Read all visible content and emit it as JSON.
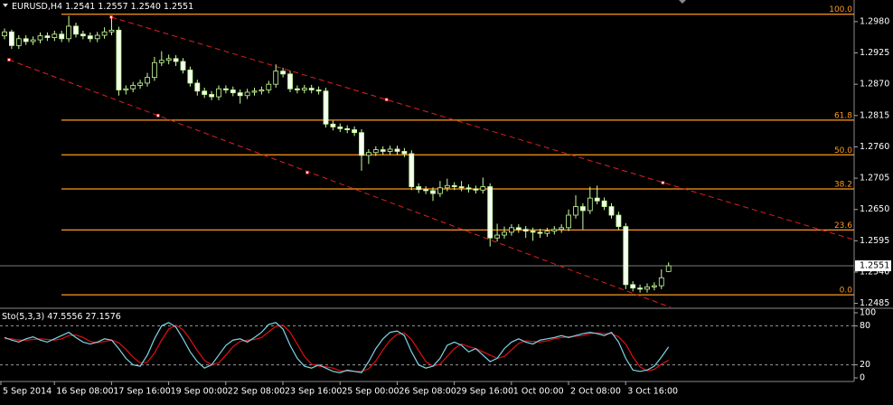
{
  "chart_data": {
    "type": "candlestick",
    "title": "EURUSD,H4",
    "ohlc_header": "1.2541 1.2557 1.2540 1.2551",
    "categories": [
      "5 Sep 2014",
      null,
      null,
      null,
      null,
      null,
      null,
      null,
      "16 Sep 08:00",
      null,
      null,
      null,
      null,
      null,
      null,
      null,
      "17 Sep 16:00",
      null,
      null,
      null,
      null,
      null,
      null,
      null,
      "19 Sep 00:00",
      null,
      null,
      null,
      null,
      null,
      null,
      null,
      "22 Sep 08:00",
      null,
      null,
      null,
      null,
      null,
      null,
      null,
      "23 Sep 16:00",
      null,
      null,
      null,
      null,
      null,
      null,
      null,
      "25 Sep 00:00",
      null,
      null,
      null,
      null,
      null,
      null,
      null,
      "26 Sep 08:00",
      null,
      null,
      null,
      null,
      null,
      null,
      null,
      "29 Sep 16:00",
      null,
      null,
      null,
      null,
      null,
      null,
      null,
      "1 Oct 00:00",
      null,
      null,
      null,
      null,
      null,
      null,
      null,
      "2 Oct 08:00",
      null,
      null,
      null,
      null,
      null,
      null,
      null,
      "3 Oct 16:00",
      null,
      null,
      null,
      null,
      null
    ],
    "ohlc": [
      [
        1.2955,
        1.2968,
        1.2949,
        1.2962
      ],
      [
        1.2962,
        1.2966,
        1.2932,
        1.2938
      ],
      [
        1.2938,
        1.2956,
        1.2932,
        1.295
      ],
      [
        1.295,
        1.2956,
        1.2939,
        1.2945
      ],
      [
        1.2945,
        1.2954,
        1.2939,
        1.2948
      ],
      [
        1.2948,
        1.2961,
        1.2942,
        1.2955
      ],
      [
        1.2955,
        1.2961,
        1.2946,
        1.2952
      ],
      [
        1.2952,
        1.2964,
        1.2946,
        1.2958
      ],
      [
        1.2958,
        1.2964,
        1.2944,
        1.295
      ],
      [
        1.295,
        1.299,
        1.2944,
        1.2972
      ],
      [
        1.2972,
        1.2978,
        1.2952,
        1.2958
      ],
      [
        1.2958,
        1.2964,
        1.2949,
        1.2955
      ],
      [
        1.2955,
        1.2961,
        1.2944,
        1.295
      ],
      [
        1.295,
        1.2962,
        1.2944,
        1.2956
      ],
      [
        1.2956,
        1.297,
        1.295,
        1.2962
      ],
      [
        1.2962,
        1.2988,
        1.2956,
        1.2965
      ],
      [
        1.2965,
        1.2971,
        1.285,
        1.286
      ],
      [
        1.286,
        1.2868,
        1.2852,
        1.2862
      ],
      [
        1.2862,
        1.2874,
        1.2856,
        1.2868
      ],
      [
        1.2868,
        1.2878,
        1.2862,
        1.2872
      ],
      [
        1.2872,
        1.289,
        1.2866,
        1.2882
      ],
      [
        1.2882,
        1.2918,
        1.2876,
        1.2908
      ],
      [
        1.2908,
        1.2928,
        1.2902,
        1.2912
      ],
      [
        1.2912,
        1.2922,
        1.2905,
        1.2915
      ],
      [
        1.2915,
        1.2921,
        1.2902,
        1.291
      ],
      [
        1.291,
        1.2916,
        1.2889,
        1.2895
      ],
      [
        1.2895,
        1.2901,
        1.2866,
        1.2872
      ],
      [
        1.2872,
        1.2878,
        1.285,
        1.2858
      ],
      [
        1.2858,
        1.2864,
        1.2846,
        1.2852
      ],
      [
        1.2852,
        1.2858,
        1.2842,
        1.2848
      ],
      [
        1.2848,
        1.2868,
        1.2842,
        1.2862
      ],
      [
        1.2862,
        1.2868,
        1.2854,
        1.286
      ],
      [
        1.286,
        1.2866,
        1.2849,
        1.2855
      ],
      [
        1.2855,
        1.2861,
        1.2836,
        1.285
      ],
      [
        1.285,
        1.2862,
        1.2844,
        1.2856
      ],
      [
        1.2856,
        1.2864,
        1.285,
        1.2858
      ],
      [
        1.2858,
        1.2866,
        1.2852,
        1.286
      ],
      [
        1.286,
        1.2876,
        1.2854,
        1.287
      ],
      [
        1.287,
        1.2905,
        1.2864,
        1.2893
      ],
      [
        1.2893,
        1.2899,
        1.2882,
        1.2888
      ],
      [
        1.2888,
        1.2894,
        1.2856,
        1.2862
      ],
      [
        1.2862,
        1.2868,
        1.2854,
        1.286
      ],
      [
        1.286,
        1.2869,
        1.2854,
        1.2863
      ],
      [
        1.2863,
        1.2869,
        1.2854,
        1.286
      ],
      [
        1.286,
        1.2866,
        1.2852,
        1.2858
      ],
      [
        1.2858,
        1.2864,
        1.2794,
        1.28
      ],
      [
        1.28,
        1.2806,
        1.2789,
        1.2795
      ],
      [
        1.2795,
        1.2801,
        1.2786,
        1.2792
      ],
      [
        1.2792,
        1.2798,
        1.2784,
        1.279
      ],
      [
        1.279,
        1.2796,
        1.2779,
        1.2785
      ],
      [
        1.2785,
        1.2791,
        1.2718,
        1.2745
      ],
      [
        1.2745,
        1.2756,
        1.273,
        1.275
      ],
      [
        1.275,
        1.2761,
        1.2744,
        1.2755
      ],
      [
        1.2755,
        1.2761,
        1.2746,
        1.2752
      ],
      [
        1.2752,
        1.2762,
        1.2746,
        1.2756
      ],
      [
        1.2756,
        1.2762,
        1.2746,
        1.2752
      ],
      [
        1.2752,
        1.2758,
        1.2742,
        1.2748
      ],
      [
        1.2748,
        1.2754,
        1.2684,
        1.269
      ],
      [
        1.269,
        1.2696,
        1.2679,
        1.2685
      ],
      [
        1.2685,
        1.2691,
        1.2677,
        1.2683
      ],
      [
        1.2683,
        1.2689,
        1.2665,
        1.2678
      ],
      [
        1.2678,
        1.27,
        1.2672,
        1.2688
      ],
      [
        1.2688,
        1.2704,
        1.2682,
        1.2692
      ],
      [
        1.2692,
        1.2698,
        1.2684,
        1.269
      ],
      [
        1.269,
        1.27,
        1.2682,
        1.2688
      ],
      [
        1.2688,
        1.2694,
        1.268,
        1.2686
      ],
      [
        1.2686,
        1.2692,
        1.2678,
        1.2684
      ],
      [
        1.2684,
        1.2706,
        1.2678,
        1.269
      ],
      [
        1.269,
        1.2696,
        1.2585,
        1.26
      ],
      [
        1.26,
        1.2625,
        1.2594,
        1.2605
      ],
      [
        1.2605,
        1.262,
        1.2599,
        1.261
      ],
      [
        1.261,
        1.2624,
        1.2604,
        1.2618
      ],
      [
        1.2618,
        1.2624,
        1.2609,
        1.2615
      ],
      [
        1.2615,
        1.2621,
        1.26,
        1.2612
      ],
      [
        1.2612,
        1.2618,
        1.2595,
        1.261
      ],
      [
        1.261,
        1.2616,
        1.26,
        1.2608
      ],
      [
        1.2608,
        1.2618,
        1.2602,
        1.2612
      ],
      [
        1.2612,
        1.2621,
        1.2606,
        1.2615
      ],
      [
        1.2615,
        1.2624,
        1.2609,
        1.2618
      ],
      [
        1.2618,
        1.265,
        1.2612,
        1.264
      ],
      [
        1.264,
        1.2675,
        1.2634,
        1.2655
      ],
      [
        1.2655,
        1.2661,
        1.2615,
        1.2648
      ],
      [
        1.2648,
        1.269,
        1.2642,
        1.267
      ],
      [
        1.267,
        1.2692,
        1.2659,
        1.2665
      ],
      [
        1.2665,
        1.2671,
        1.2649,
        1.2655
      ],
      [
        1.2655,
        1.2661,
        1.2634,
        1.264
      ],
      [
        1.264,
        1.2646,
        1.2614,
        1.262
      ],
      [
        1.262,
        1.2626,
        1.251,
        1.2518
      ],
      [
        1.2518,
        1.2524,
        1.2506,
        1.2512
      ],
      [
        1.2512,
        1.2518,
        1.2504,
        1.251
      ],
      [
        1.251,
        1.252,
        1.2504,
        1.2514
      ],
      [
        1.2514,
        1.2522,
        1.2508,
        1.2516
      ],
      [
        1.2516,
        1.2545,
        1.251,
        1.253
      ],
      [
        1.2541,
        1.2557,
        1.254,
        1.2551
      ]
    ],
    "colors": {
      "up_fill": "#000000",
      "down_fill": "#f4fff0",
      "outline": "#c8ff9a",
      "fib": "#ff9a1e",
      "channel": "#e02020",
      "last_line": "#7a7a7a"
    },
    "ylim": [
      1.2478,
      1.3018
    ],
    "yticks": [
      {
        "value": 1.298,
        "label": "1.2980"
      },
      1.2925,
      {
        "value": 1.287,
        "label": "1.2870"
      },
      1.2815,
      {
        "value": 1.276,
        "label": "1.2760"
      },
      1.2705,
      {
        "value": 1.265,
        "label": "1.2650"
      },
      1.2595,
      {
        "value": 1.254,
        "label": "1.2540"
      },
      1.2485
    ],
    "last_price": {
      "value": 1.2551,
      "label": "1.2551"
    },
    "fib_levels": [
      {
        "label": "100.0",
        "value": 1.2993
      },
      {
        "label": "61.8",
        "value": 1.2807
      },
      {
        "label": "50.0",
        "value": 1.2746
      },
      {
        "label": "38.2",
        "value": 1.2686
      },
      {
        "label": "23.6",
        "value": 1.2614
      },
      {
        "label": "0.0",
        "value": 1.25
      }
    ],
    "channels": [
      {
        "points": [
          [
            14.94,
            1.2988
          ],
          [
            53.5,
            1.2843
          ],
          [
            92.2,
            1.2697
          ]
        ]
      },
      {
        "points": [
          [
            0.63,
            1.2913
          ],
          [
            21.5,
            1.2815
          ],
          [
            42.4,
            1.2715
          ]
        ]
      }
    ],
    "stochastic": {
      "title": "Sto(5,3,3)",
      "ylim": [
        0,
        100
      ],
      "yticks": [
        100,
        80,
        20,
        0
      ],
      "levels": [
        20,
        80
      ],
      "main": {
        "color": "#7fd4e6",
        "values": [
          62,
          58,
          55,
          60,
          63,
          58,
          55,
          60,
          65,
          70,
          62,
          55,
          52,
          55,
          60,
          58,
          45,
          30,
          20,
          18,
          35,
          60,
          80,
          85,
          78,
          60,
          40,
          25,
          15,
          20,
          35,
          50,
          58,
          60,
          55,
          62,
          70,
          82,
          85,
          75,
          50,
          30,
          18,
          15,
          20,
          15,
          10,
          8,
          12,
          10,
          8,
          25,
          45,
          60,
          70,
          72,
          65,
          40,
          20,
          15,
          18,
          30,
          50,
          55,
          50,
          40,
          45,
          35,
          25,
          30,
          45,
          55,
          60,
          55,
          52,
          58,
          60,
          62,
          65,
          62,
          65,
          68,
          70,
          68,
          65,
          70,
          55,
          30,
          12,
          10,
          12,
          18,
          32,
          47.5556
        ]
      },
      "signal": {
        "color": "#e01010",
        "values": [
          60,
          60,
          58,
          58,
          59,
          60,
          59,
          58,
          60,
          65,
          66,
          62,
          56,
          54,
          56,
          58,
          54,
          44,
          32,
          23,
          24,
          38,
          58,
          75,
          81,
          74,
          59,
          42,
          27,
          20,
          23,
          35,
          48,
          56,
          58,
          59,
          62,
          71,
          79,
          81,
          70,
          52,
          33,
          21,
          18,
          17,
          15,
          11,
          10,
          10,
          10,
          14,
          26,
          43,
          58,
          67,
          69,
          59,
          42,
          25,
          18,
          21,
          33,
          45,
          52,
          48,
          45,
          40,
          35,
          30,
          33,
          43,
          53,
          57,
          56,
          55,
          57,
          60,
          62,
          63,
          64,
          65,
          68,
          69,
          68,
          68,
          63,
          52,
          32,
          17,
          11,
          13,
          21,
          27.1576
        ]
      }
    }
  }
}
